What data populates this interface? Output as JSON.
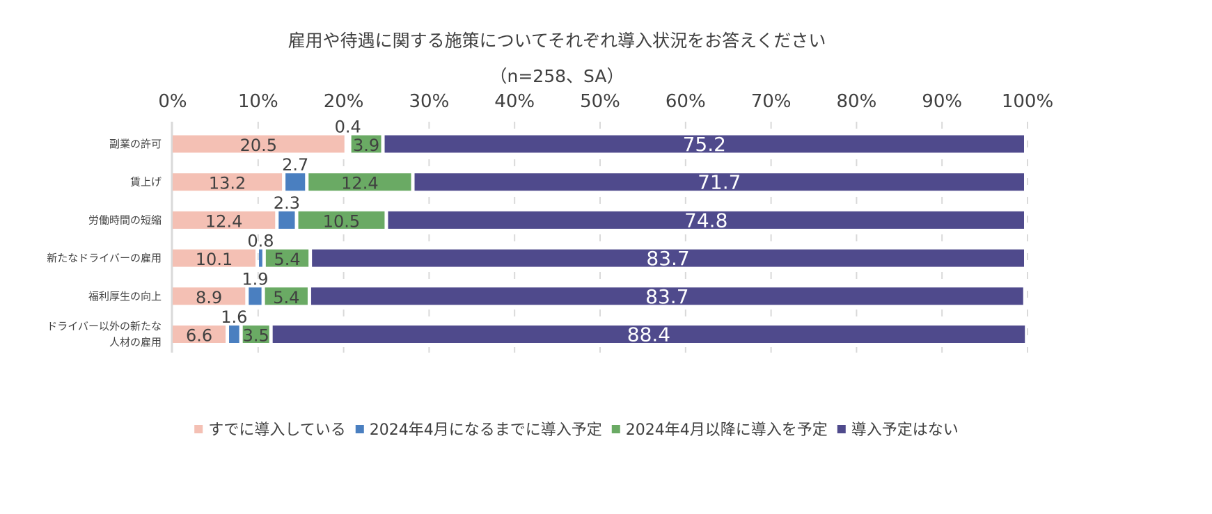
{
  "chart_data": {
    "type": "bar",
    "orientation": "horizontal",
    "stacked": true,
    "title": "雇用や待遇に関する施策についてそれぞれ導入状況をお答えください",
    "subtitle": "（n=258、SA）",
    "xlim": [
      0,
      100
    ],
    "x_ticks": [
      "0%",
      "10%",
      "20%",
      "30%",
      "40%",
      "50%",
      "60%",
      "70%",
      "80%",
      "90%",
      "100%"
    ],
    "categories": [
      [
        "副業の許可"
      ],
      [
        "賃上げ"
      ],
      [
        "労働時間の短縮"
      ],
      [
        "新たなドライバーの雇用"
      ],
      [
        "福利厚生の向上"
      ],
      [
        "ドライバー以外の新たな",
        "人材の雇用"
      ]
    ],
    "series": [
      {
        "name": "すでに導入している",
        "color": "#F4C0B4",
        "values": [
          20.5,
          13.2,
          12.4,
          10.1,
          8.9,
          6.6
        ]
      },
      {
        "name": "2024年4月になるまでに導入予定",
        "color": "#4A7FC0",
        "values": [
          0.4,
          2.7,
          2.3,
          0.8,
          1.9,
          1.6
        ]
      },
      {
        "name": "2024年4月以降に導入を予定",
        "color": "#6AAA64",
        "values": [
          3.9,
          12.4,
          10.5,
          5.4,
          5.4,
          3.5
        ]
      },
      {
        "name": "導入予定はない",
        "color": "#4F4A8C",
        "values": [
          75.2,
          71.7,
          74.8,
          83.7,
          83.7,
          88.4
        ]
      }
    ],
    "legend_position": "bottom",
    "grid": true
  }
}
